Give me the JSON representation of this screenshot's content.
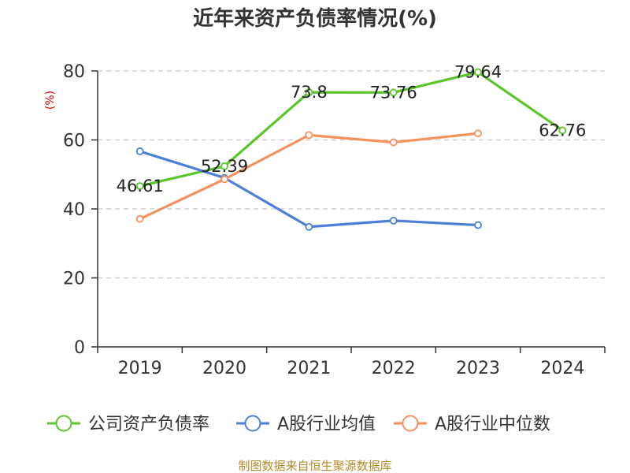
{
  "chart_data": {
    "type": "line",
    "title": "近年来资产负债率情况(%)",
    "ylabel": "(%)",
    "xlabel": "",
    "categories": [
      "2019",
      "2020",
      "2021",
      "2022",
      "2023",
      "2024"
    ],
    "ylim": [
      0,
      80
    ],
    "yticks": [
      0,
      20,
      40,
      60,
      80
    ],
    "grid": true,
    "legend_position": "bottom",
    "series": [
      {
        "name": "公司资产负债率",
        "color": "#5cc52a",
        "values": [
          46.61,
          52.39,
          73.8,
          73.76,
          79.64,
          62.76
        ],
        "labels": [
          "46.61",
          "52.39",
          "73.8",
          "73.76",
          "79.64",
          "62.76"
        ],
        "show_labels": true
      },
      {
        "name": "A股行业均值",
        "color": "#4e7fd8",
        "values": [
          56.7,
          49.0,
          34.8,
          36.6,
          35.3,
          null
        ],
        "show_labels": false
      },
      {
        "name": "A股行业中位数",
        "color": "#f5915c",
        "values": [
          37.1,
          48.6,
          61.4,
          59.3,
          61.9,
          null
        ],
        "show_labels": false
      }
    ],
    "source": "制图数据来自恒生聚源数据库"
  }
}
